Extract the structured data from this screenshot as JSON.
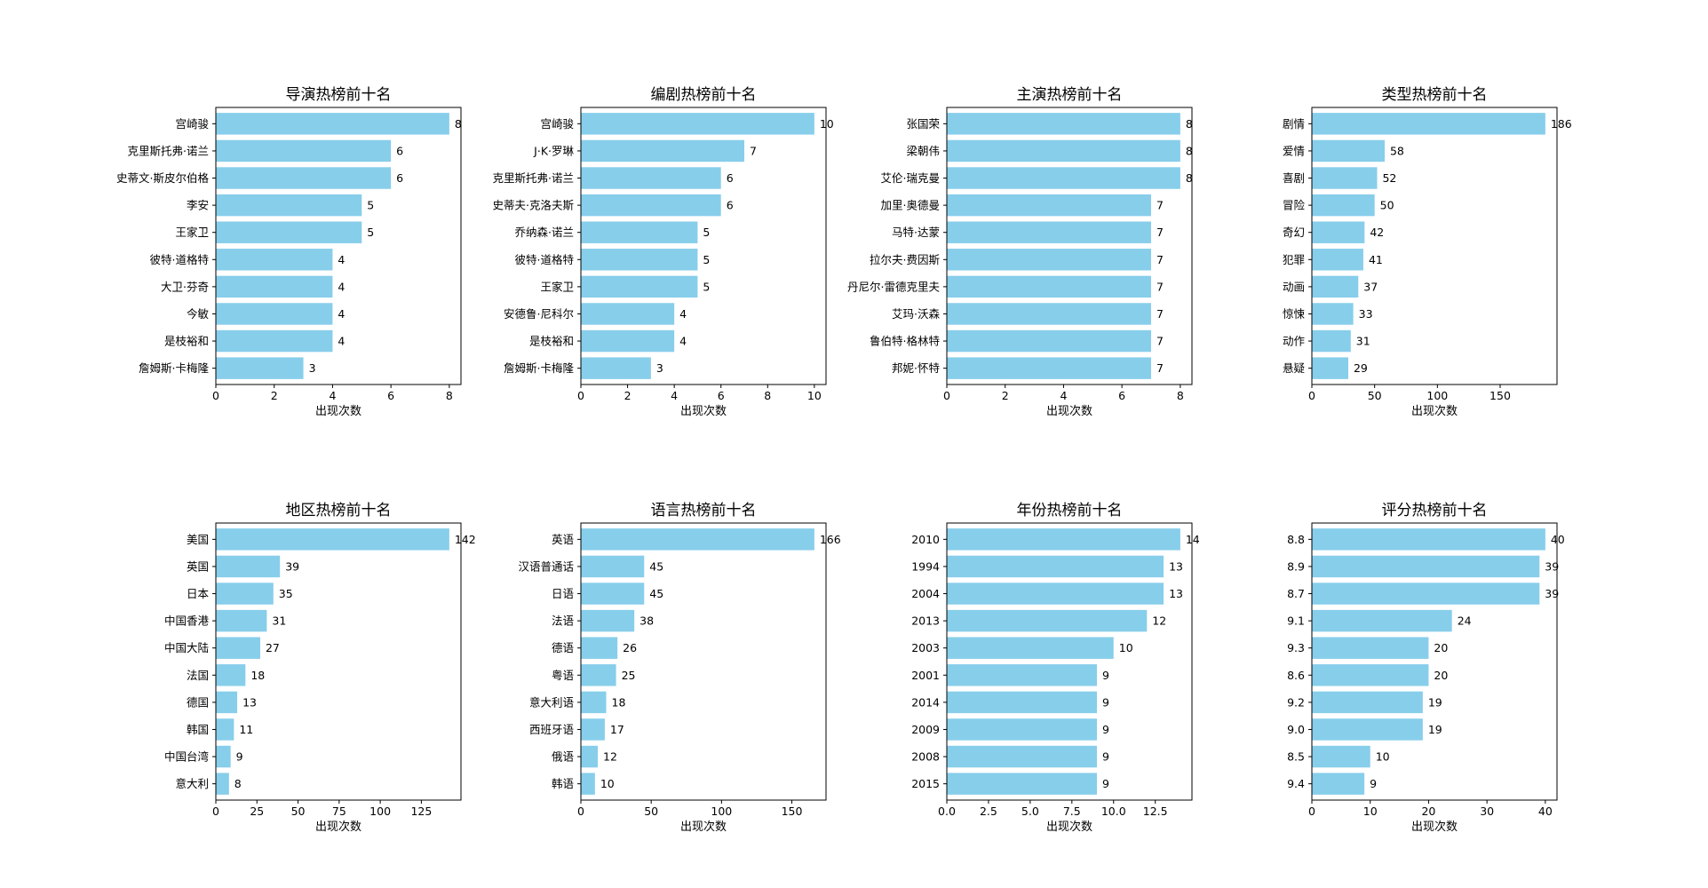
{
  "style": {
    "bar_color": "#87ceeb",
    "axis_color": "#000000",
    "background": "#ffffff"
  },
  "chart_data": [
    {
      "type": "bar",
      "orientation": "horizontal",
      "title": "导演热榜前十名",
      "xlabel": "出现次数",
      "categories": [
        "宫崎骏",
        "克里斯托弗·诺兰",
        "史蒂文·斯皮尔伯格",
        "李安",
        "王家卫",
        "彼特·道格特",
        "大卫·芬奇",
        "今敏",
        "是枝裕和",
        "詹姆斯·卡梅隆"
      ],
      "values": [
        8,
        6,
        6,
        5,
        5,
        4,
        4,
        4,
        4,
        3
      ],
      "xlim": [
        0,
        8.4
      ],
      "xticks": [
        0,
        2,
        4,
        6,
        8
      ],
      "xtick_labels": [
        "0",
        "2",
        "4",
        "6",
        "8"
      ],
      "grid": false
    },
    {
      "type": "bar",
      "orientation": "horizontal",
      "title": "编剧热榜前十名",
      "xlabel": "出现次数",
      "categories": [
        "宫崎骏",
        "J·K·罗琳",
        "克里斯托弗·诺兰",
        "史蒂夫·克洛夫斯",
        "乔纳森·诺兰",
        "彼特·道格特",
        "王家卫",
        "安德鲁·尼科尔",
        "是枝裕和",
        "詹姆斯·卡梅隆"
      ],
      "values": [
        10,
        7,
        6,
        6,
        5,
        5,
        5,
        4,
        4,
        3
      ],
      "xlim": [
        0,
        10.5
      ],
      "xticks": [
        0,
        2,
        4,
        6,
        8,
        10
      ],
      "xtick_labels": [
        "0",
        "2",
        "4",
        "6",
        "8",
        "10"
      ],
      "grid": false
    },
    {
      "type": "bar",
      "orientation": "horizontal",
      "title": "主演热榜前十名",
      "xlabel": "出现次数",
      "categories": [
        "张国荣",
        "梁朝伟",
        "艾伦·瑞克曼",
        "加里·奥德曼",
        "马特·达蒙",
        "拉尔夫·费因斯",
        "丹尼尔·雷德克里夫",
        "艾玛·沃森",
        "鲁伯特·格林特",
        "邦妮·怀特"
      ],
      "values": [
        8,
        8,
        8,
        7,
        7,
        7,
        7,
        7,
        7,
        7
      ],
      "xlim": [
        0,
        8.4
      ],
      "xticks": [
        0,
        2,
        4,
        6,
        8
      ],
      "xtick_labels": [
        "0",
        "2",
        "4",
        "6",
        "8"
      ],
      "grid": false
    },
    {
      "type": "bar",
      "orientation": "horizontal",
      "title": "类型热榜前十名",
      "xlabel": "出现次数",
      "categories": [
        "剧情",
        "爱情",
        "喜剧",
        "冒险",
        "奇幻",
        "犯罪",
        "动画",
        "惊悚",
        "动作",
        "悬疑"
      ],
      "values": [
        186,
        58,
        52,
        50,
        42,
        41,
        37,
        33,
        31,
        29
      ],
      "xlim": [
        0,
        195.3
      ],
      "xticks": [
        0,
        50,
        100,
        150
      ],
      "xtick_labels": [
        "0",
        "50",
        "100",
        "150"
      ],
      "grid": false
    },
    {
      "type": "bar",
      "orientation": "horizontal",
      "title": "地区热榜前十名",
      "xlabel": "出现次数",
      "categories": [
        "美国",
        "英国",
        "日本",
        "中国香港",
        "中国大陆",
        "法国",
        "德国",
        "韩国",
        "中国台湾",
        "意大利"
      ],
      "values": [
        142,
        39,
        35,
        31,
        27,
        18,
        13,
        11,
        9,
        8
      ],
      "xlim": [
        0,
        149.1
      ],
      "xticks": [
        0,
        25,
        50,
        75,
        100,
        125
      ],
      "xtick_labels": [
        "0",
        "25",
        "50",
        "75",
        "100",
        "125"
      ],
      "grid": false
    },
    {
      "type": "bar",
      "orientation": "horizontal",
      "title": "语言热榜前十名",
      "xlabel": "出现次数",
      "categories": [
        "英语",
        "汉语普通话",
        "日语",
        "法语",
        "德语",
        "粤语",
        "意大利语",
        "西班牙语",
        "俄语",
        "韩语"
      ],
      "values": [
        166,
        45,
        45,
        38,
        26,
        25,
        18,
        17,
        12,
        10
      ],
      "xlim": [
        0,
        174.3
      ],
      "xticks": [
        0,
        50,
        100,
        150
      ],
      "xtick_labels": [
        "0",
        "50",
        "100",
        "150"
      ],
      "grid": false
    },
    {
      "type": "bar",
      "orientation": "horizontal",
      "title": "年份热榜前十名",
      "xlabel": "出现次数",
      "categories": [
        "2010",
        "1994",
        "2004",
        "2013",
        "2003",
        "2001",
        "2014",
        "2009",
        "2008",
        "2015"
      ],
      "values": [
        14,
        13,
        13,
        12,
        10,
        9,
        9,
        9,
        9,
        9
      ],
      "xlim": [
        0,
        14.7
      ],
      "xticks": [
        0,
        2.5,
        5,
        7.5,
        10,
        12.5
      ],
      "xtick_labels": [
        "0.0",
        "2.5",
        "5.0",
        "7.5",
        "10.0",
        "12.5"
      ],
      "grid": false
    },
    {
      "type": "bar",
      "orientation": "horizontal",
      "title": "评分热榜前十名",
      "xlabel": "出现次数",
      "categories": [
        "8.8",
        "8.9",
        "8.7",
        "9.1",
        "9.3",
        "8.6",
        "9.2",
        "9.0",
        "8.5",
        "9.4"
      ],
      "values": [
        40,
        39,
        39,
        24,
        20,
        20,
        19,
        19,
        10,
        9
      ],
      "xlim": [
        0,
        42
      ],
      "xticks": [
        0,
        10,
        20,
        30,
        40
      ],
      "xtick_labels": [
        "0",
        "10",
        "20",
        "30",
        "40"
      ],
      "grid": false
    }
  ]
}
